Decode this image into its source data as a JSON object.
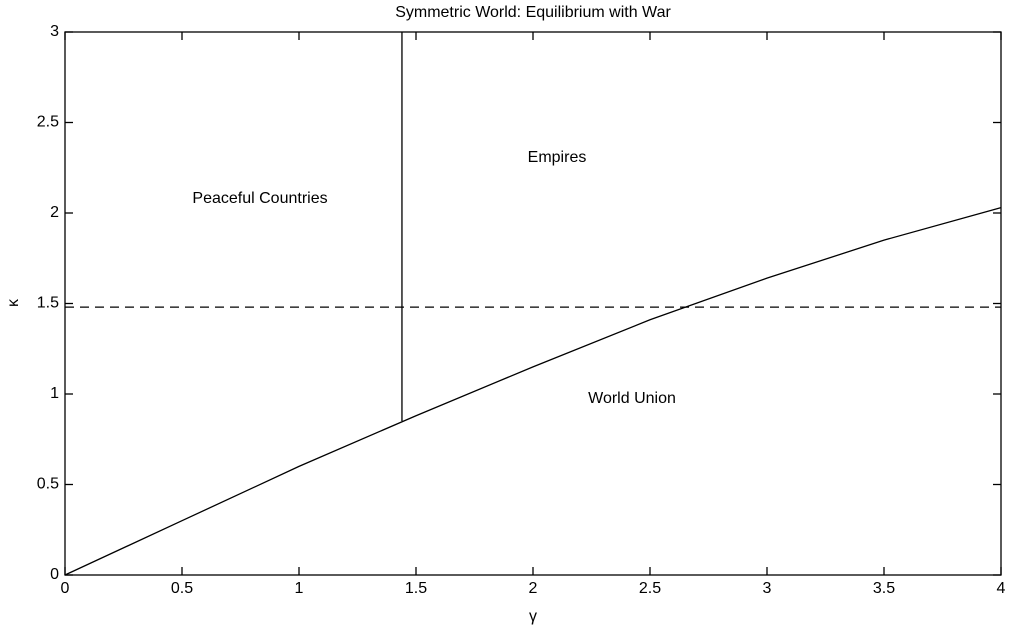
{
  "chart_data": {
    "type": "line",
    "title": "Symmetric World: Equilibrium with War",
    "x_label": "γ",
    "y_label": "κ",
    "x": [
      0,
      0.5,
      1,
      1.5,
      2,
      2.5,
      3,
      3.5,
      4
    ],
    "series": [
      {
        "color": "#000000",
        "values": [
          0,
          0.3,
          0.6,
          0.88,
          1.15,
          1.41,
          1.64,
          1.85,
          2.03
        ]
      }
    ],
    "boundaries": {
      "vertical": {
        "x": 1.44,
        "ymin": 0.85,
        "ymax": 3
      },
      "horizontal": {
        "y": 1.48,
        "style": "dashed"
      }
    },
    "annotations": [
      "Peaceful Countries",
      "Empires",
      "World Union"
    ],
    "xlim": [
      0,
      4
    ],
    "xticks": [
      0,
      0.5,
      1,
      1.5,
      2,
      2.5,
      3,
      3.5,
      4
    ],
    "ylim": [
      0,
      3
    ],
    "yticks": [
      0,
      0.5,
      1,
      1.5,
      2,
      2.5,
      3
    ],
    "grid": false
  }
}
